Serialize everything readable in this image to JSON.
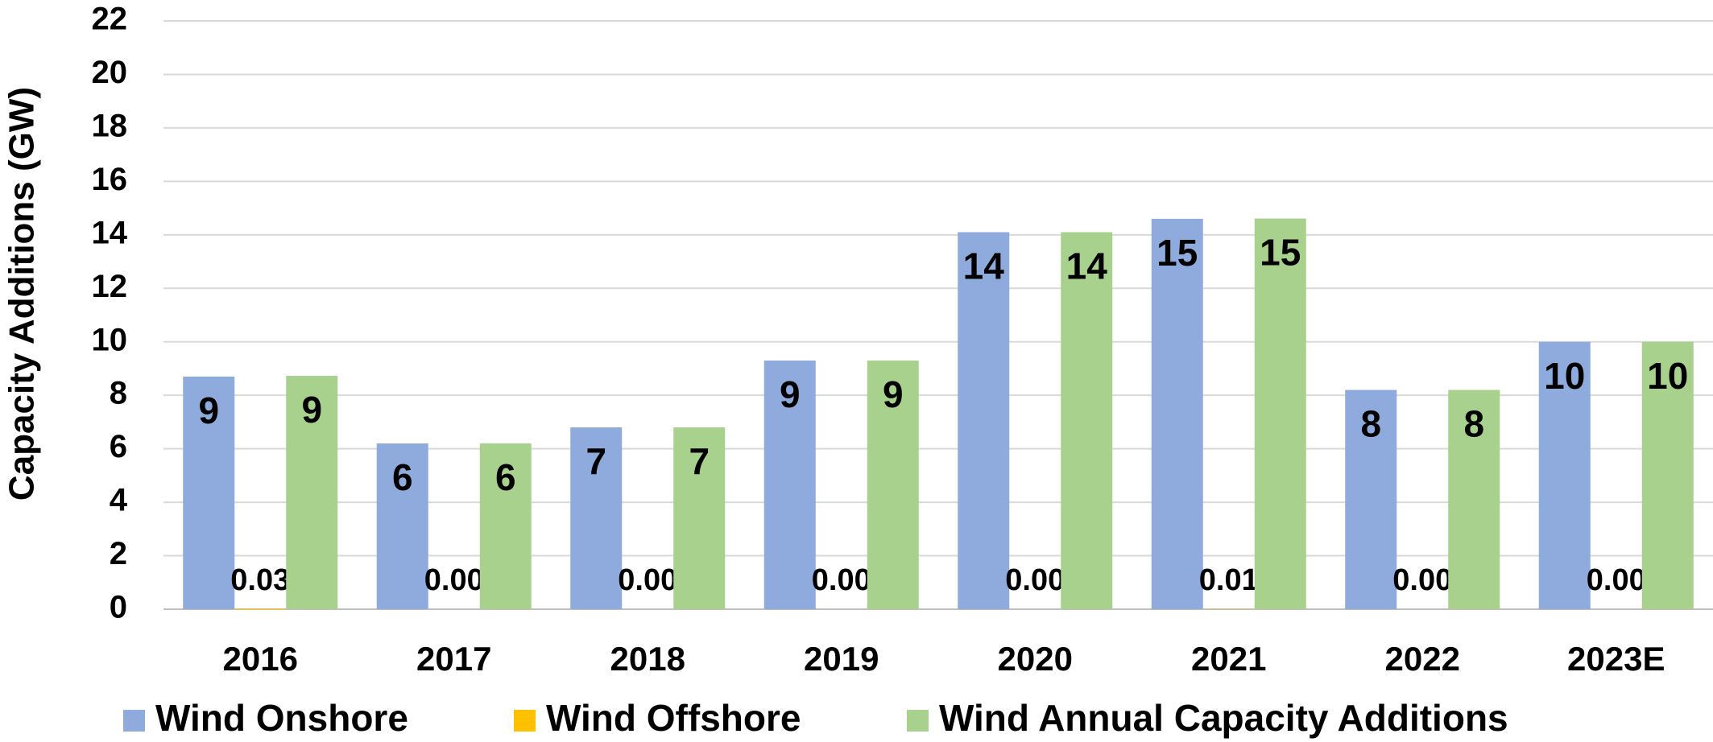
{
  "chart_data": {
    "type": "bar",
    "y_label": "Capacity Additions (GW)",
    "categories": [
      "2016",
      "2017",
      "2018",
      "2019",
      "2020",
      "2021",
      "2022",
      "2023E"
    ],
    "series": [
      {
        "name": "Wind Onshore",
        "color": "#8faadc",
        "values": [
          8.7,
          6.2,
          6.8,
          9.3,
          14.1,
          14.6,
          8.2,
          10.0
        ],
        "value_labels": [
          "9",
          "6",
          "7",
          "9",
          "14",
          "15",
          "8",
          "10"
        ]
      },
      {
        "name": "Wind Offshore",
        "color": "#ffc000",
        "values": [
          0.03,
          0,
          0,
          0,
          0,
          0.01,
          0,
          0
        ],
        "value_labels": [
          "0.03",
          "0.00",
          "0.00",
          "0.00",
          "0.00",
          "0.01",
          "0.00",
          "0.00"
        ]
      },
      {
        "name": "Wind Annual Capacity Additions",
        "color": "#a9d18e",
        "values": [
          8.73,
          6.2,
          6.8,
          9.3,
          14.1,
          14.61,
          8.2,
          10.0
        ],
        "value_labels": [
          "9",
          "6",
          "7",
          "9",
          "14",
          "15",
          "8",
          "10"
        ]
      }
    ],
    "ylim": [
      0,
      22
    ],
    "yticks": [
      0,
      2,
      4,
      6,
      8,
      10,
      12,
      14,
      16,
      18,
      20,
      22
    ],
    "grid": true,
    "legend": "bottom"
  }
}
